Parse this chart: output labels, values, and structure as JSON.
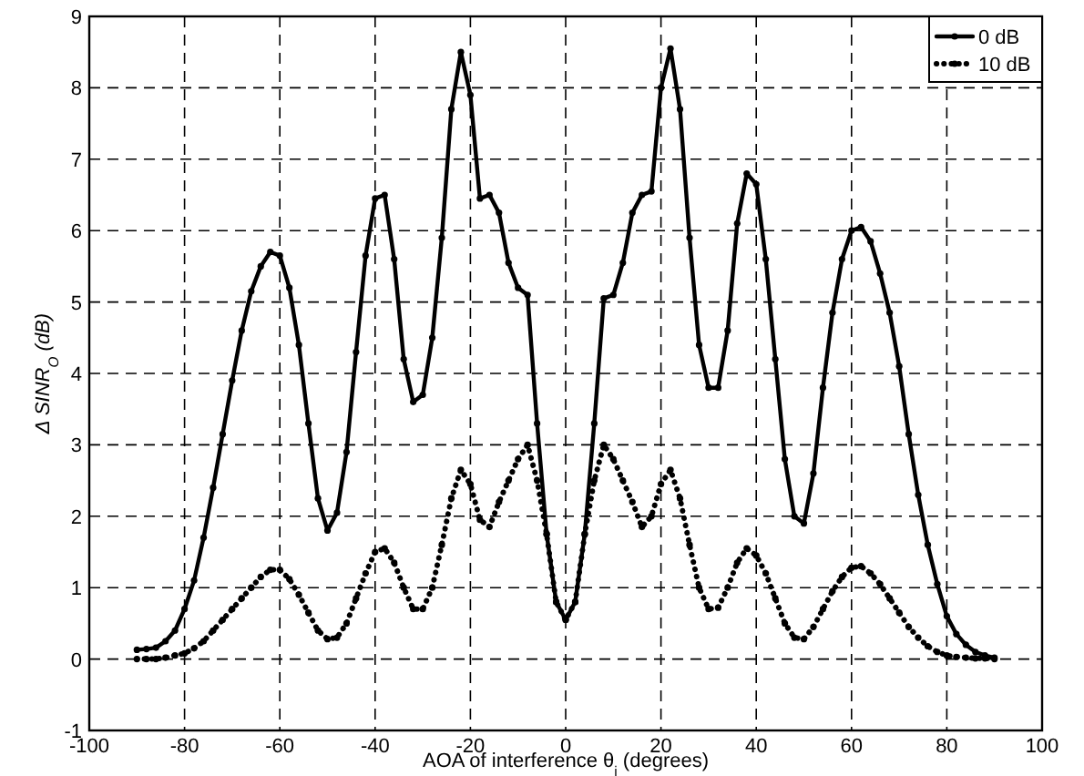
{
  "chart_data": {
    "type": "line",
    "xlabel": "AOA of interference θ$_{i}$ (degrees)",
    "ylabel": "Δ SINR$_{O}$ (dB)",
    "x": [
      -90,
      -88,
      -86,
      -84,
      -82,
      -80,
      -78,
      -76,
      -74,
      -72,
      -70,
      -68,
      -66,
      -64,
      -62,
      -60,
      -58,
      -56,
      -54,
      -52,
      -50,
      -48,
      -46,
      -44,
      -42,
      -40,
      -38,
      -36,
      -34,
      -32,
      -30,
      -28,
      -26,
      -24,
      -22,
      -20,
      -18,
      -16,
      -14,
      -12,
      -10,
      -8,
      -6,
      -4,
      -2,
      0,
      2,
      4,
      6,
      8,
      10,
      12,
      14,
      16,
      18,
      20,
      22,
      24,
      26,
      28,
      30,
      32,
      34,
      36,
      38,
      40,
      42,
      44,
      46,
      48,
      50,
      52,
      54,
      56,
      58,
      60,
      62,
      64,
      66,
      68,
      70,
      72,
      74,
      76,
      78,
      80,
      82,
      84,
      86,
      88,
      90
    ],
    "series": [
      {
        "name": "0 dB",
        "color": "#000000",
        "line_style": "solid",
        "values": [
          0.13,
          0.14,
          0.16,
          0.25,
          0.4,
          0.7,
          1.1,
          1.7,
          2.4,
          3.15,
          3.9,
          4.6,
          5.15,
          5.5,
          5.7,
          5.65,
          5.2,
          4.4,
          3.3,
          2.25,
          1.8,
          2.05,
          2.9,
          4.3,
          5.65,
          6.45,
          6.5,
          5.6,
          4.2,
          3.6,
          3.7,
          4.5,
          5.9,
          7.7,
          8.5,
          7.9,
          6.45,
          6.5,
          6.25,
          5.55,
          5.2,
          5.1,
          3.3,
          1.75,
          0.8,
          0.55,
          0.8,
          1.75,
          3.3,
          5.05,
          5.1,
          5.55,
          6.25,
          6.5,
          6.55,
          8.0,
          8.55,
          7.7,
          5.9,
          4.4,
          3.8,
          3.8,
          4.6,
          6.1,
          6.8,
          6.65,
          5.6,
          4.2,
          2.8,
          2.0,
          1.9,
          2.6,
          3.8,
          4.85,
          5.6,
          6.0,
          6.05,
          5.85,
          5.4,
          4.85,
          4.1,
          3.15,
          2.3,
          1.6,
          1.05,
          0.6,
          0.35,
          0.2,
          0.1,
          0.05,
          0.02
        ]
      },
      {
        "name": "10 dB",
        "color": "#000000",
        "line_style": "dotted",
        "values": [
          0,
          0,
          0,
          0.02,
          0.05,
          0.08,
          0.15,
          0.25,
          0.4,
          0.55,
          0.7,
          0.85,
          1.0,
          1.15,
          1.25,
          1.25,
          1.12,
          0.9,
          0.65,
          0.4,
          0.28,
          0.3,
          0.5,
          0.85,
          1.2,
          1.5,
          1.55,
          1.35,
          1.0,
          0.7,
          0.7,
          1.0,
          1.6,
          2.25,
          2.65,
          2.45,
          1.95,
          1.85,
          2.2,
          2.5,
          2.8,
          3.0,
          2.5,
          1.75,
          0.8,
          0.55,
          0.8,
          1.75,
          2.5,
          3.0,
          2.8,
          2.5,
          2.2,
          1.85,
          2.0,
          2.45,
          2.65,
          2.25,
          1.6,
          1.0,
          0.7,
          0.72,
          1.0,
          1.35,
          1.55,
          1.45,
          1.2,
          0.85,
          0.5,
          0.3,
          0.28,
          0.45,
          0.7,
          0.95,
          1.15,
          1.28,
          1.3,
          1.2,
          1.05,
          0.85,
          0.65,
          0.45,
          0.3,
          0.18,
          0.1,
          0.05,
          0.03,
          0.02,
          0.01,
          0.01,
          0
        ]
      }
    ],
    "xlim": [
      -100,
      100
    ],
    "xticks": [
      -100,
      -80,
      -60,
      -40,
      -20,
      0,
      20,
      40,
      60,
      80,
      100
    ],
    "ylim": [
      -1,
      9
    ],
    "yticks": [
      -1,
      0,
      1,
      2,
      3,
      4,
      5,
      6,
      7,
      8,
      9
    ],
    "grid": true,
    "legend": "top right",
    "marker": "circle"
  }
}
